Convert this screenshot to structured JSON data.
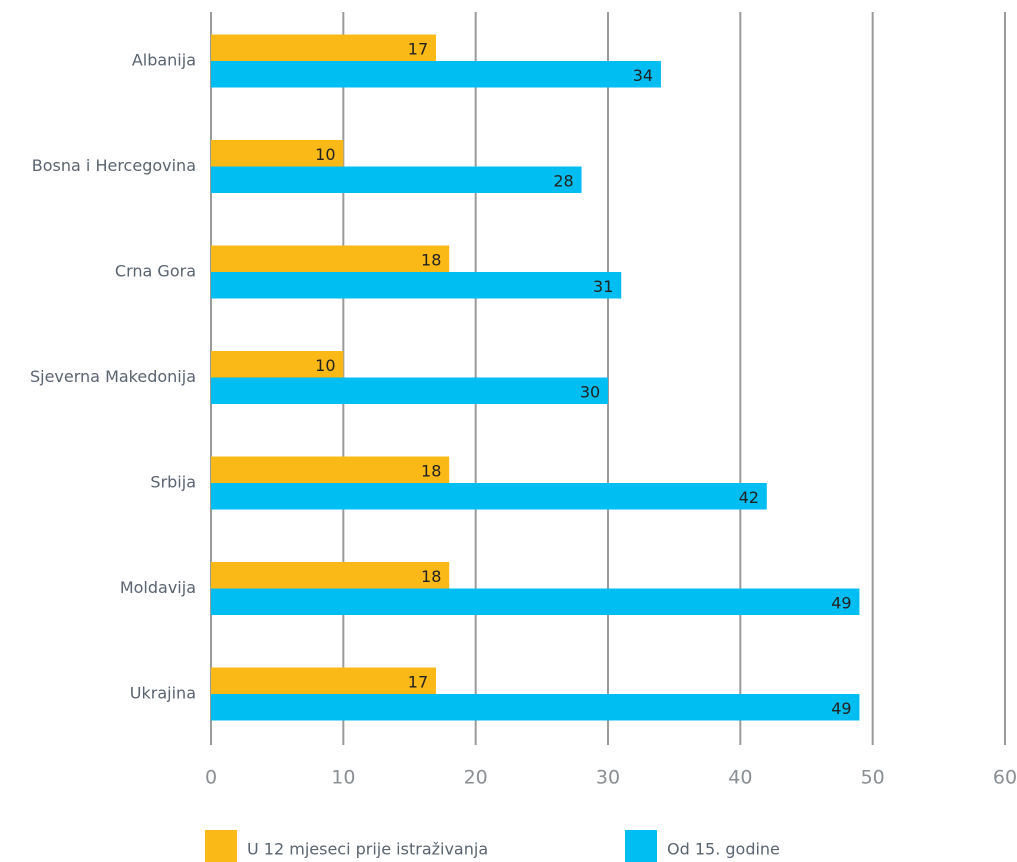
{
  "chart_data": {
    "type": "hbar",
    "categories": [
      "Albanija",
      "Bosna i Hercegovina",
      "Crna Gora",
      "Sjeverna Makedonija",
      "Srbija",
      "Moldavija",
      "Ukrajina"
    ],
    "series": [
      {
        "name": "U 12 mjeseci prije istraživanja",
        "color": "#fbb917",
        "values": [
          17,
          10,
          18,
          10,
          18,
          18,
          17
        ]
      },
      {
        "name": "Od 15. godine",
        "color": "#00bdf2",
        "values": [
          34,
          28,
          31,
          30,
          42,
          49,
          49
        ]
      }
    ],
    "xlim": [
      0,
      60
    ],
    "xticks": [
      0,
      10,
      20,
      30,
      40,
      50,
      60
    ],
    "grid": true,
    "legend": "bottom"
  }
}
